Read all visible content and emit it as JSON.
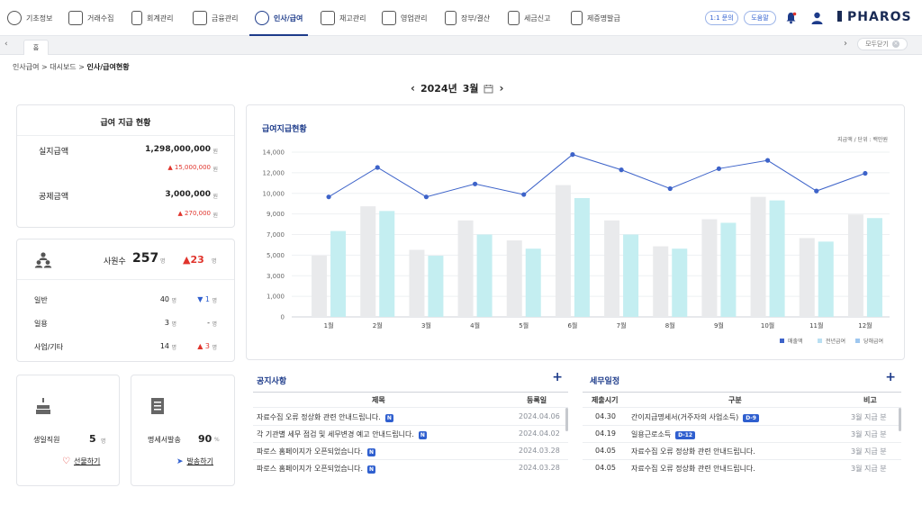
{
  "nav": {
    "items": [
      {
        "label": "기초정보"
      },
      {
        "label": "거래수집"
      },
      {
        "label": "회계관리"
      },
      {
        "label": "금융관리"
      },
      {
        "label": "인사/급여"
      },
      {
        "label": "재고관리"
      },
      {
        "label": "영업관리"
      },
      {
        "label": "장부/결산"
      },
      {
        "label": "세금신고"
      },
      {
        "label": "제증명발급"
      }
    ],
    "inquiry_label": "1:1 문의",
    "help_label": "도움말",
    "logo": "PHAROS"
  },
  "tabs": {
    "home_label": "홈",
    "close_all_label": "모두닫기"
  },
  "breadcrumb": {
    "part1": "인사급여 > 대시보드 > ",
    "current": "인사/급여현황"
  },
  "period": {
    "year": "2024년",
    "month": "3월"
  },
  "payment_card": {
    "title": "급여 지급 현황",
    "actual_label": "실지급액",
    "actual_value": "1,298,000,000",
    "actual_unit": "원",
    "actual_change": "▲ 15,000,000",
    "actual_change_unit": "원",
    "deduct_label": "공제금액",
    "deduct_value": "3,000,000",
    "deduct_unit": "원",
    "deduct_change": "▲ 270,000",
    "deduct_change_unit": "원"
  },
  "employee_card": {
    "count_label": "사원수",
    "count_value": "257",
    "count_unit": "명",
    "count_change": "▲23",
    "count_change_unit": "명",
    "rows": [
      {
        "label": "일반",
        "value": "40",
        "unit": "명",
        "change": "▼ 1",
        "change_unit": "명"
      },
      {
        "label": "일용",
        "value": "3",
        "unit": "명",
        "change": "-",
        "change_unit": "명"
      },
      {
        "label": "사업/기타",
        "value": "14",
        "unit": "명",
        "change": "▲ 3",
        "change_unit": "명"
      }
    ]
  },
  "birthday_card": {
    "label": "생일직원",
    "value": "5",
    "unit": "명",
    "action": "선물하기"
  },
  "statement_card": {
    "label": "명세서발송",
    "value": "90",
    "unit": "%",
    "action": "발송하기"
  },
  "chart_data": {
    "type": "bar",
    "title": "급여지급현황",
    "subtitle": "지급액 / 단위 : 백만원",
    "categories": [
      "1월",
      "2월",
      "3월",
      "4월",
      "5월",
      "6월",
      "7월",
      "8월",
      "9월",
      "10월",
      "11월",
      "12월"
    ],
    "ylim": [
      0,
      14000
    ],
    "yticks": [
      "14,000",
      "12,000",
      "10,000",
      "9,000",
      "7,000",
      "5,000",
      "3,000",
      "1,000",
      "0"
    ],
    "series": [
      {
        "name": "전년급여",
        "kind": "bar",
        "color": "#e9eaec",
        "values": [
          5200,
          9400,
          5700,
          8200,
          6500,
          11200,
          8200,
          6000,
          8300,
          10200,
          6700,
          8700
        ]
      },
      {
        "name": "당해급여",
        "kind": "bar",
        "color": "#c4eef1",
        "values": [
          7300,
          9000,
          5200,
          7000,
          5800,
          10100,
          7000,
          5800,
          8000,
          9900,
          6400,
          8400
        ]
      },
      {
        "name": "매출액",
        "kind": "line",
        "color": "#3d63c9",
        "values": [
          10200,
          12700,
          10200,
          11300,
          10400,
          13800,
          12500,
          10900,
          12600,
          13300,
          10700,
          12200
        ]
      }
    ],
    "legend_position": "bottom-right"
  },
  "notices": {
    "title": "공지사항",
    "col_title": "제목",
    "col_date": "등록일",
    "rows": [
      {
        "title": "자료수집 오류 정상화 관련 안내드립니다.",
        "badge": "N",
        "date": "2024.04.06"
      },
      {
        "title": "각 기관별 세무 점검 및 세무변경 예고 안내드립니다.",
        "badge": "N",
        "date": "2024.04.02"
      },
      {
        "title": "파로스 홈페이지가 오픈되었습니다.",
        "badge": "N",
        "date": "2024.03.28"
      },
      {
        "title": "파로스 홈페이지가 오픈되었습니다.",
        "badge": "N",
        "date": "2024.03.28"
      }
    ]
  },
  "tax_schedule": {
    "title": "세무일정",
    "col_due": "제출시기",
    "col_type": "구분",
    "col_note": "비고",
    "rows": [
      {
        "due": "04.30",
        "type": "간이지급명세서(거주자의 사업소득)",
        "badge": "D-9",
        "note": "3월 지급 분"
      },
      {
        "due": "04.19",
        "type": "일용근로소득",
        "badge": "D-12",
        "note": "3월 지급 분"
      },
      {
        "due": "04.05",
        "type": "자료수집 오류 정상화 관련 안내드립니다.",
        "badge": "",
        "note": "3월 지급 분"
      },
      {
        "due": "04.05",
        "type": "자료수집 오류 정상화 관련 안내드립니다.",
        "badge": "",
        "note": "3월 지급 분"
      }
    ]
  }
}
